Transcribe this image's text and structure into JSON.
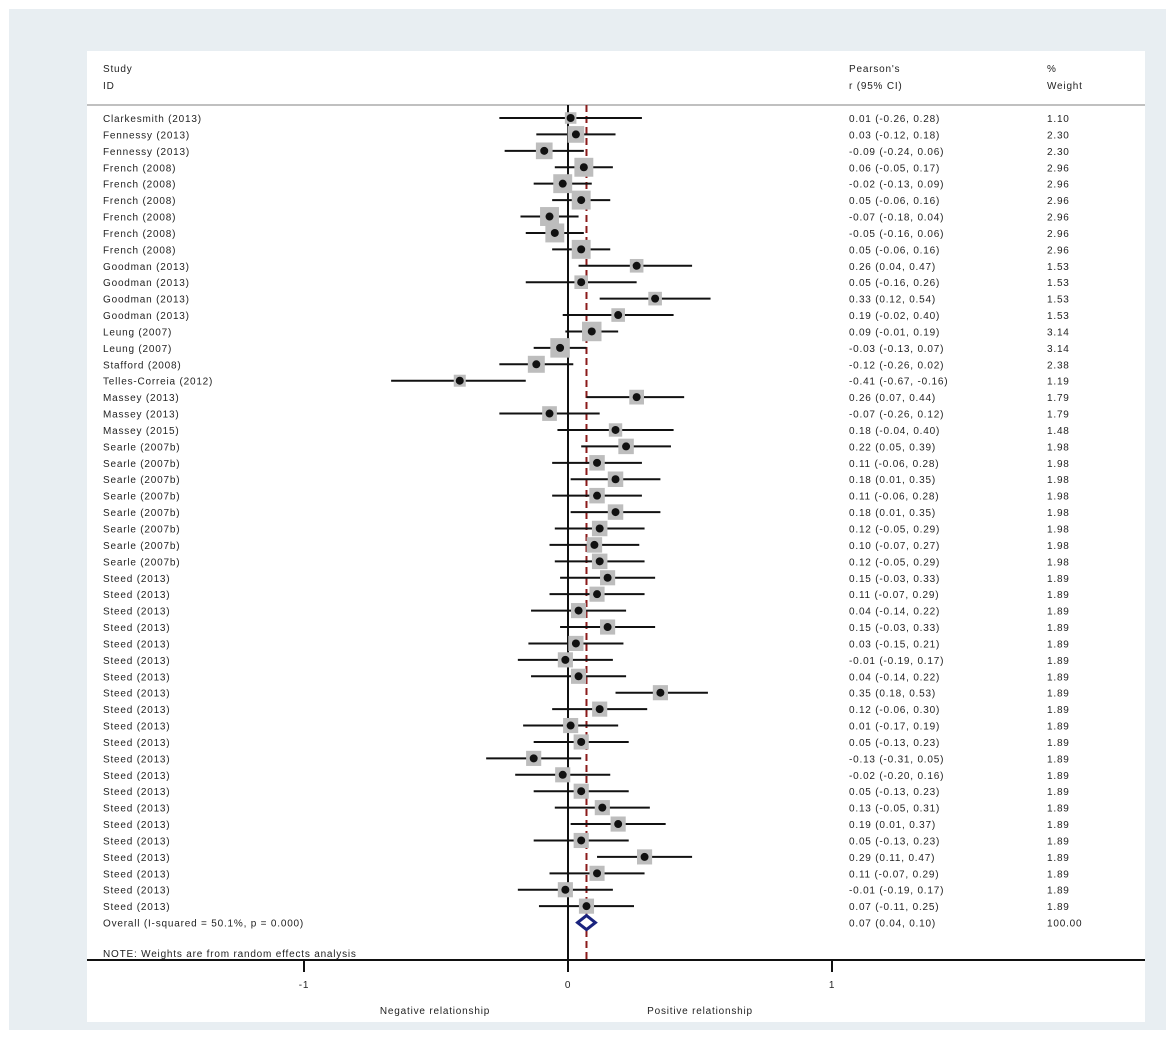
{
  "chart_data": {
    "type": "forest",
    "headers": {
      "study": [
        "Study",
        "ID"
      ],
      "effect": [
        "Pearson's",
        "r (95% CI)"
      ],
      "weight": [
        "%",
        "Weight"
      ]
    },
    "studies": [
      {
        "label": "Clarkesmith (2013)",
        "r": 0.01,
        "lo": -0.26,
        "hi": 0.28,
        "ci_text": "0.01 (-0.26, 0.28)",
        "weight": 1.1,
        "weight_text": "1.10"
      },
      {
        "label": "Fennessy (2013)",
        "r": 0.03,
        "lo": -0.12,
        "hi": 0.18,
        "ci_text": "0.03 (-0.12, 0.18)",
        "weight": 2.3,
        "weight_text": "2.30"
      },
      {
        "label": "Fennessy (2013)",
        "r": -0.09,
        "lo": -0.24,
        "hi": 0.06,
        "ci_text": "-0.09 (-0.24, 0.06)",
        "weight": 2.3,
        "weight_text": "2.30"
      },
      {
        "label": "French (2008)",
        "r": 0.06,
        "lo": -0.05,
        "hi": 0.17,
        "ci_text": "0.06 (-0.05, 0.17)",
        "weight": 2.96,
        "weight_text": "2.96"
      },
      {
        "label": "French (2008)",
        "r": -0.02,
        "lo": -0.13,
        "hi": 0.09,
        "ci_text": "-0.02 (-0.13, 0.09)",
        "weight": 2.96,
        "weight_text": "2.96"
      },
      {
        "label": "French (2008)",
        "r": 0.05,
        "lo": -0.06,
        "hi": 0.16,
        "ci_text": "0.05 (-0.06, 0.16)",
        "weight": 2.96,
        "weight_text": "2.96"
      },
      {
        "label": "French (2008)",
        "r": -0.07,
        "lo": -0.18,
        "hi": 0.04,
        "ci_text": "-0.07 (-0.18, 0.04)",
        "weight": 2.96,
        "weight_text": "2.96"
      },
      {
        "label": "French (2008)",
        "r": -0.05,
        "lo": -0.16,
        "hi": 0.06,
        "ci_text": "-0.05 (-0.16, 0.06)",
        "weight": 2.96,
        "weight_text": "2.96"
      },
      {
        "label": "French (2008)",
        "r": 0.05,
        "lo": -0.06,
        "hi": 0.16,
        "ci_text": "0.05 (-0.06, 0.16)",
        "weight": 2.96,
        "weight_text": "2.96"
      },
      {
        "label": "Goodman (2013)",
        "r": 0.26,
        "lo": 0.04,
        "hi": 0.47,
        "ci_text": "0.26 (0.04, 0.47)",
        "weight": 1.53,
        "weight_text": "1.53"
      },
      {
        "label": "Goodman (2013)",
        "r": 0.05,
        "lo": -0.16,
        "hi": 0.26,
        "ci_text": "0.05 (-0.16, 0.26)",
        "weight": 1.53,
        "weight_text": "1.53"
      },
      {
        "label": "Goodman (2013)",
        "r": 0.33,
        "lo": 0.12,
        "hi": 0.54,
        "ci_text": "0.33 (0.12, 0.54)",
        "weight": 1.53,
        "weight_text": "1.53"
      },
      {
        "label": "Goodman (2013)",
        "r": 0.19,
        "lo": -0.02,
        "hi": 0.4,
        "ci_text": "0.19 (-0.02, 0.40)",
        "weight": 1.53,
        "weight_text": "1.53"
      },
      {
        "label": "Leung (2007)",
        "r": 0.09,
        "lo": -0.01,
        "hi": 0.19,
        "ci_text": "0.09 (-0.01, 0.19)",
        "weight": 3.14,
        "weight_text": "3.14"
      },
      {
        "label": "Leung (2007)",
        "r": -0.03,
        "lo": -0.13,
        "hi": 0.07,
        "ci_text": "-0.03 (-0.13, 0.07)",
        "weight": 3.14,
        "weight_text": "3.14"
      },
      {
        "label": "Stafford (2008)",
        "r": -0.12,
        "lo": -0.26,
        "hi": 0.02,
        "ci_text": "-0.12 (-0.26, 0.02)",
        "weight": 2.38,
        "weight_text": "2.38"
      },
      {
        "label": "Telles-Correia (2012)",
        "r": -0.41,
        "lo": -0.67,
        "hi": -0.16,
        "ci_text": "-0.41 (-0.67, -0.16)",
        "weight": 1.19,
        "weight_text": "1.19"
      },
      {
        "label": "Massey (2013)",
        "r": 0.26,
        "lo": 0.07,
        "hi": 0.44,
        "ci_text": "0.26 (0.07, 0.44)",
        "weight": 1.79,
        "weight_text": "1.79"
      },
      {
        "label": "Massey (2013)",
        "r": -0.07,
        "lo": -0.26,
        "hi": 0.12,
        "ci_text": "-0.07 (-0.26, 0.12)",
        "weight": 1.79,
        "weight_text": "1.79"
      },
      {
        "label": "Massey (2015)",
        "r": 0.18,
        "lo": -0.04,
        "hi": 0.4,
        "ci_text": "0.18 (-0.04, 0.40)",
        "weight": 1.48,
        "weight_text": "1.48"
      },
      {
        "label": "Searle (2007b)",
        "r": 0.22,
        "lo": 0.05,
        "hi": 0.39,
        "ci_text": "0.22 (0.05, 0.39)",
        "weight": 1.98,
        "weight_text": "1.98"
      },
      {
        "label": "Searle (2007b)",
        "r": 0.11,
        "lo": -0.06,
        "hi": 0.28,
        "ci_text": "0.11 (-0.06, 0.28)",
        "weight": 1.98,
        "weight_text": "1.98"
      },
      {
        "label": "Searle (2007b)",
        "r": 0.18,
        "lo": 0.01,
        "hi": 0.35,
        "ci_text": "0.18 (0.01, 0.35)",
        "weight": 1.98,
        "weight_text": "1.98"
      },
      {
        "label": "Searle (2007b)",
        "r": 0.11,
        "lo": -0.06,
        "hi": 0.28,
        "ci_text": "0.11 (-0.06, 0.28)",
        "weight": 1.98,
        "weight_text": "1.98"
      },
      {
        "label": "Searle (2007b)",
        "r": 0.18,
        "lo": 0.01,
        "hi": 0.35,
        "ci_text": "0.18 (0.01, 0.35)",
        "weight": 1.98,
        "weight_text": "1.98"
      },
      {
        "label": "Searle (2007b)",
        "r": 0.12,
        "lo": -0.05,
        "hi": 0.29,
        "ci_text": "0.12 (-0.05, 0.29)",
        "weight": 1.98,
        "weight_text": "1.98"
      },
      {
        "label": "Searle (2007b)",
        "r": 0.1,
        "lo": -0.07,
        "hi": 0.27,
        "ci_text": "0.10 (-0.07, 0.27)",
        "weight": 1.98,
        "weight_text": "1.98"
      },
      {
        "label": "Searle (2007b)",
        "r": 0.12,
        "lo": -0.05,
        "hi": 0.29,
        "ci_text": "0.12 (-0.05, 0.29)",
        "weight": 1.98,
        "weight_text": "1.98"
      },
      {
        "label": "Steed (2013)",
        "r": 0.15,
        "lo": -0.03,
        "hi": 0.33,
        "ci_text": "0.15 (-0.03, 0.33)",
        "weight": 1.89,
        "weight_text": "1.89"
      },
      {
        "label": "Steed (2013)",
        "r": 0.11,
        "lo": -0.07,
        "hi": 0.29,
        "ci_text": "0.11 (-0.07, 0.29)",
        "weight": 1.89,
        "weight_text": "1.89"
      },
      {
        "label": "Steed (2013)",
        "r": 0.04,
        "lo": -0.14,
        "hi": 0.22,
        "ci_text": "0.04 (-0.14, 0.22)",
        "weight": 1.89,
        "weight_text": "1.89"
      },
      {
        "label": "Steed (2013)",
        "r": 0.15,
        "lo": -0.03,
        "hi": 0.33,
        "ci_text": "0.15 (-0.03, 0.33)",
        "weight": 1.89,
        "weight_text": "1.89"
      },
      {
        "label": "Steed (2013)",
        "r": 0.03,
        "lo": -0.15,
        "hi": 0.21,
        "ci_text": "0.03 (-0.15, 0.21)",
        "weight": 1.89,
        "weight_text": "1.89"
      },
      {
        "label": "Steed (2013)",
        "r": -0.01,
        "lo": -0.19,
        "hi": 0.17,
        "ci_text": "-0.01 (-0.19, 0.17)",
        "weight": 1.89,
        "weight_text": "1.89"
      },
      {
        "label": "Steed (2013)",
        "r": 0.04,
        "lo": -0.14,
        "hi": 0.22,
        "ci_text": "0.04 (-0.14, 0.22)",
        "weight": 1.89,
        "weight_text": "1.89"
      },
      {
        "label": "Steed (2013)",
        "r": 0.35,
        "lo": 0.18,
        "hi": 0.53,
        "ci_text": "0.35 (0.18, 0.53)",
        "weight": 1.89,
        "weight_text": "1.89"
      },
      {
        "label": "Steed (2013)",
        "r": 0.12,
        "lo": -0.06,
        "hi": 0.3,
        "ci_text": "0.12 (-0.06, 0.30)",
        "weight": 1.89,
        "weight_text": "1.89"
      },
      {
        "label": "Steed (2013)",
        "r": 0.01,
        "lo": -0.17,
        "hi": 0.19,
        "ci_text": "0.01 (-0.17, 0.19)",
        "weight": 1.89,
        "weight_text": "1.89"
      },
      {
        "label": "Steed (2013)",
        "r": 0.05,
        "lo": -0.13,
        "hi": 0.23,
        "ci_text": "0.05 (-0.13, 0.23)",
        "weight": 1.89,
        "weight_text": "1.89"
      },
      {
        "label": "Steed (2013)",
        "r": -0.13,
        "lo": -0.31,
        "hi": 0.05,
        "ci_text": "-0.13 (-0.31, 0.05)",
        "weight": 1.89,
        "weight_text": "1.89"
      },
      {
        "label": "Steed (2013)",
        "r": -0.02,
        "lo": -0.2,
        "hi": 0.16,
        "ci_text": "-0.02 (-0.20, 0.16)",
        "weight": 1.89,
        "weight_text": "1.89"
      },
      {
        "label": "Steed (2013)",
        "r": 0.05,
        "lo": -0.13,
        "hi": 0.23,
        "ci_text": "0.05 (-0.13, 0.23)",
        "weight": 1.89,
        "weight_text": "1.89"
      },
      {
        "label": "Steed (2013)",
        "r": 0.13,
        "lo": -0.05,
        "hi": 0.31,
        "ci_text": "0.13 (-0.05, 0.31)",
        "weight": 1.89,
        "weight_text": "1.89"
      },
      {
        "label": "Steed (2013)",
        "r": 0.19,
        "lo": 0.01,
        "hi": 0.37,
        "ci_text": "0.19 (0.01, 0.37)",
        "weight": 1.89,
        "weight_text": "1.89"
      },
      {
        "label": "Steed (2013)",
        "r": 0.05,
        "lo": -0.13,
        "hi": 0.23,
        "ci_text": "0.05 (-0.13, 0.23)",
        "weight": 1.89,
        "weight_text": "1.89"
      },
      {
        "label": "Steed (2013)",
        "r": 0.29,
        "lo": 0.11,
        "hi": 0.47,
        "ci_text": "0.29 (0.11, 0.47)",
        "weight": 1.89,
        "weight_text": "1.89"
      },
      {
        "label": "Steed (2013)",
        "r": 0.11,
        "lo": -0.07,
        "hi": 0.29,
        "ci_text": "0.11 (-0.07, 0.29)",
        "weight": 1.89,
        "weight_text": "1.89"
      },
      {
        "label": "Steed (2013)",
        "r": -0.01,
        "lo": -0.19,
        "hi": 0.17,
        "ci_text": "-0.01 (-0.19, 0.17)",
        "weight": 1.89,
        "weight_text": "1.89"
      },
      {
        "label": "Steed (2013)",
        "r": 0.07,
        "lo": -0.11,
        "hi": 0.25,
        "ci_text": "0.07 (-0.11, 0.25)",
        "weight": 1.89,
        "weight_text": "1.89"
      }
    ],
    "overall": {
      "label": "Overall  (I-squared = 50.1%, p = 0.000)",
      "r": 0.07,
      "lo": 0.04,
      "hi": 0.1,
      "ci_text": "0.07 (0.04, 0.10)",
      "weight_text": "100.00"
    },
    "note": "NOTE: Weights are from random effects analysis",
    "x_ticks": [
      -1,
      0,
      1
    ],
    "x_tick_labels": [
      "-1",
      "0",
      "1"
    ],
    "xlim": [
      -1.5,
      2.0
    ],
    "axis_captions": {
      "negative": "Negative relationship",
      "positive": "Positive relationship"
    },
    "colors": {
      "panel_bg": "#e8eef2",
      "plot_bg": "#ffffff",
      "box": "#bdbdbd",
      "point": "#111111",
      "overall_line": "#8b1a1a",
      "diamond": "#1a237e"
    }
  }
}
